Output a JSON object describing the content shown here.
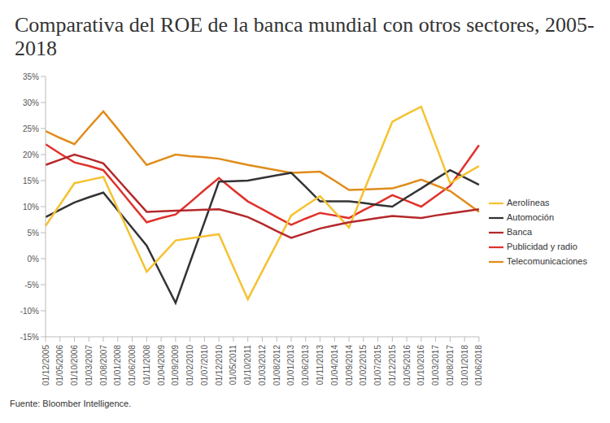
{
  "chart_data": {
    "type": "line",
    "title": "Comparativa del ROE de la banca mundial con otros sectores, 2005-2018",
    "source": "Fuente: Bloomber Intelligence.",
    "categories": [
      "01/12/2005",
      "01/05/2006",
      "01/10/2006",
      "01/03/2007",
      "01/08/2007",
      "01/01/2008",
      "01/06/2008",
      "01/11/2008",
      "01/04/2009",
      "01/09/2009",
      "01/02/2010",
      "01/07/2010",
      "01/12/2010",
      "01/05/2011",
      "01/10/2011",
      "01/03/2012",
      "01/08/2012",
      "01/01/2013",
      "01/06/2013",
      "01/11/2013",
      "01/04/2014",
      "01/09/2014",
      "01/02/2015",
      "01/07/2015",
      "01/12/2015",
      "01/05/2016",
      "01/10/2016",
      "01/03/2017",
      "01/08/2017",
      "01/01/2018",
      "01/06/2018"
    ],
    "series": [
      {
        "name": "Publicidad y radio",
        "color": "#e0312b",
        "values": [
          22,
          20.2,
          18.5,
          17.8,
          17,
          13.7,
          10.3,
          7,
          7.8,
          8.5,
          10.8,
          13.2,
          15.5,
          13.2,
          11,
          9.5,
          8,
          6.5,
          7.7,
          8.8,
          8.3,
          7.8,
          9.3,
          10.7,
          12.2,
          11.1,
          10,
          12,
          14,
          17.9,
          21.8
        ]
      },
      {
        "name": "Telecomunicaciones",
        "color": "#e08c1a",
        "values": [
          24.5,
          23.2,
          22,
          25.2,
          28.3,
          24.9,
          21.4,
          18,
          19,
          20,
          19.7,
          19.5,
          19.2,
          18.6,
          18,
          17.5,
          17,
          16.5,
          16.6,
          16.7,
          15,
          13.2,
          13.3,
          13.4,
          13.5,
          14.3,
          15.2,
          14.1,
          13,
          11,
          9
        ]
      },
      {
        "name": "Automoción",
        "color": "#333333",
        "values": [
          8,
          9.4,
          10.8,
          11.8,
          12.7,
          9.3,
          5.9,
          2.5,
          -3,
          -8.5,
          -0.7,
          7,
          14.8,
          14.9,
          15,
          15.5,
          16,
          16.5,
          13.8,
          11,
          11,
          11,
          10.7,
          10.3,
          10,
          11.8,
          13.5,
          15.3,
          17,
          15.6,
          14.2
        ]
      },
      {
        "name": "Aerolíneas",
        "color": "#f5c231",
        "values": [
          6.3,
          10.4,
          14.5,
          15.1,
          15.7,
          9.6,
          3.6,
          -2.5,
          0.5,
          3.5,
          3.9,
          4.3,
          4.7,
          -1.6,
          -7.8,
          -2.4,
          2.9,
          8.3,
          10.2,
          12,
          9,
          6,
          12.8,
          19.5,
          26.3,
          27.8,
          29.2,
          21.9,
          14.5,
          16.2,
          17.8
        ]
      },
      {
        "name": "Banca",
        "color": "#b5282a",
        "values": [
          18,
          19,
          20,
          19.2,
          18.3,
          15.2,
          12.1,
          9,
          9.1,
          9.2,
          9.3,
          9.4,
          9.5,
          8.8,
          8,
          6.7,
          5.3,
          4,
          4.9,
          5.8,
          6.4,
          7,
          7.4,
          7.8,
          8.2,
          8,
          7.8,
          8.3,
          8.7,
          9.1,
          9.5
        ]
      }
    ],
    "ylim": [
      -15,
      35
    ],
    "yticks": [
      {
        "value": -15,
        "label": "-15%"
      },
      {
        "value": -10,
        "label": "-10%"
      },
      {
        "value": -5,
        "label": "-5%"
      },
      {
        "value": 0,
        "label": "0%"
      },
      {
        "value": 5,
        "label": "5%"
      },
      {
        "value": 10,
        "label": "10%"
      },
      {
        "value": 15,
        "label": "15%"
      },
      {
        "value": 20,
        "label": "20%"
      },
      {
        "value": 25,
        "label": "25%"
      },
      {
        "value": 30,
        "label": "30%"
      },
      {
        "value": 35,
        "label": "35%"
      }
    ],
    "grid": false,
    "legend": "right"
  }
}
